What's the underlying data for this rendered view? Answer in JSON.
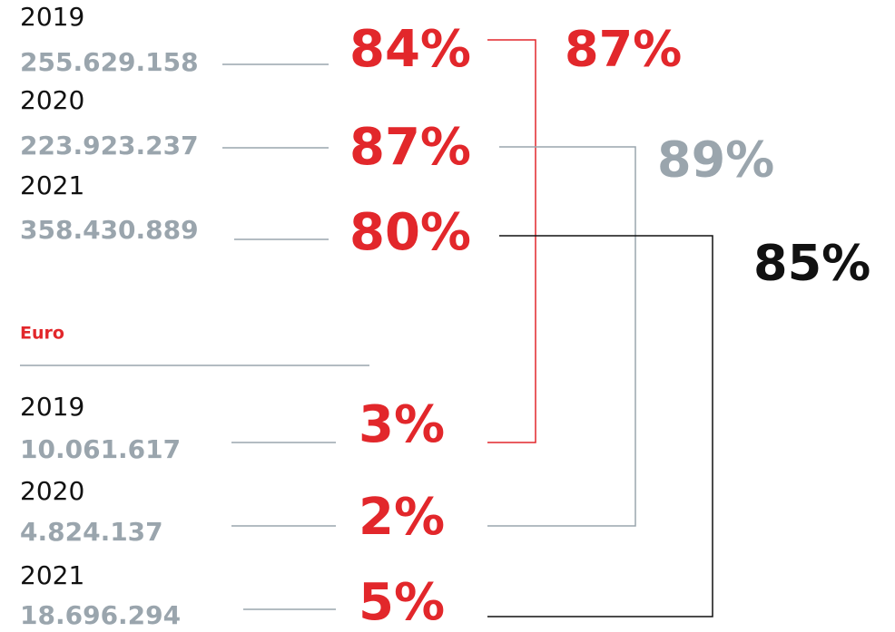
{
  "groups": [
    {
      "rows": [
        {
          "year": "2019",
          "amount": "255.629.158",
          "share": "84%"
        },
        {
          "year": "2020",
          "amount": "223.923.237",
          "share": "87%"
        },
        {
          "year": "2021",
          "amount": "358.430.889",
          "share": "80%"
        }
      ]
    },
    {
      "label": "Euro",
      "rows": [
        {
          "year": "2019",
          "amount": "10.061.617",
          "share": "3%"
        },
        {
          "year": "2020",
          "amount": "4.824.137",
          "share": "2%"
        },
        {
          "year": "2021",
          "amount": "18.696.294",
          "share": "5%"
        }
      ]
    }
  ],
  "totals": [
    "87%",
    "89%",
    "85%"
  ]
}
